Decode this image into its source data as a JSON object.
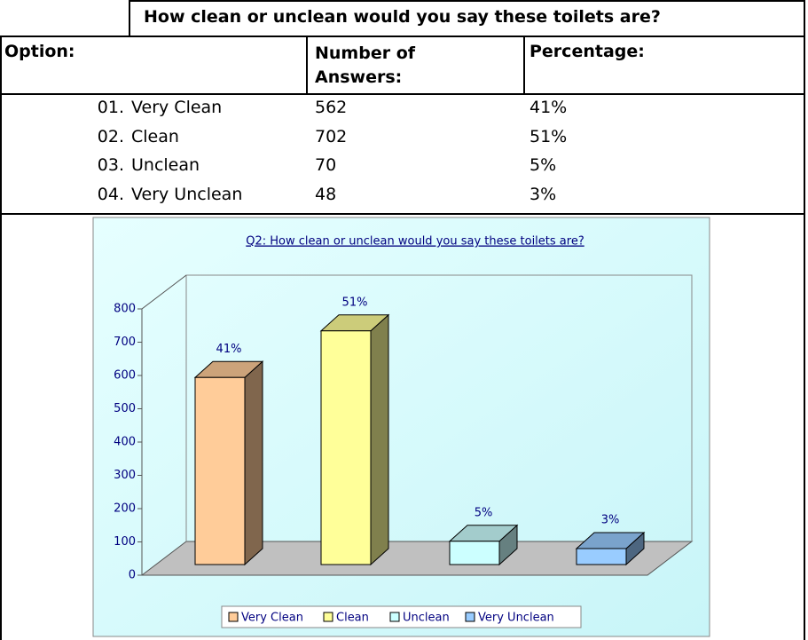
{
  "table": {
    "title": "How clean or unclean would you say these toilets are?",
    "headers": [
      "Option:",
      "Number of Answers:",
      "Percentage:"
    ],
    "rows": [
      [
        "01.",
        "Very Clean",
        "562",
        "41%"
      ],
      [
        "02.",
        "Clean",
        "702",
        "51%"
      ],
      [
        "03.",
        "Unclean",
        "70",
        "5%"
      ],
      [
        "04.",
        "Very Unclean",
        "48",
        "3%"
      ]
    ]
  },
  "chart_data": {
    "type": "bar",
    "title": "Q2: How clean or unclean would you say these toilets are?",
    "categories": [
      "Very Clean",
      "Clean",
      "Unclean",
      "Very Unclean"
    ],
    "values": [
      562,
      702,
      70,
      48
    ],
    "value_labels": [
      "41%",
      "51%",
      "5%",
      "3%"
    ],
    "colors": [
      "#ffcc99",
      "#ffff99",
      "#ccffff",
      "#99ccff"
    ],
    "ylim": [
      0,
      800
    ],
    "yticks": [
      0,
      100,
      200,
      300,
      400,
      500,
      600,
      700,
      800
    ],
    "legend": "bottom"
  }
}
